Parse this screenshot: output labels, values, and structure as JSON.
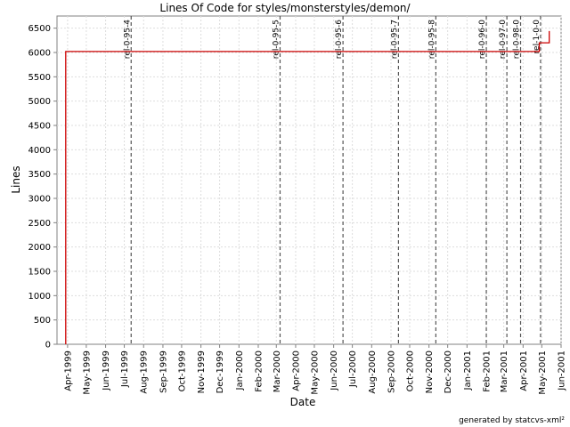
{
  "chart_data": {
    "type": "line",
    "title": "Lines Of Code for styles/monsterstyles/demon/",
    "xlabel": "Date",
    "ylabel": "Lines",
    "ylim": [
      0,
      6750
    ],
    "xlim": [
      "1999-03-15",
      "2001-06-01"
    ],
    "y_ticks": [
      0,
      500,
      1000,
      1500,
      2000,
      2500,
      3000,
      3500,
      4000,
      4500,
      5000,
      5500,
      6000,
      6500
    ],
    "x_tick_dates": [
      "1999-04-01",
      "1999-05-01",
      "1999-06-01",
      "1999-07-01",
      "1999-08-01",
      "1999-09-01",
      "1999-10-01",
      "1999-11-01",
      "1999-12-01",
      "2000-01-01",
      "2000-02-01",
      "2000-03-01",
      "2000-04-01",
      "2000-05-01",
      "2000-06-01",
      "2000-07-01",
      "2000-08-01",
      "2000-09-01",
      "2000-10-01",
      "2000-11-01",
      "2000-12-01",
      "2001-01-01",
      "2001-02-01",
      "2001-03-01",
      "2001-04-01",
      "2001-05-01",
      "2001-06-01"
    ],
    "x_tick_labels": [
      "Apr-1999",
      "May-1999",
      "Jun-1999",
      "Jul-1999",
      "Aug-1999",
      "Sep-1999",
      "Oct-1999",
      "Nov-1999",
      "Dec-1999",
      "Jan-2000",
      "Feb-2000",
      "Mar-2000",
      "Apr-2000",
      "May-2000",
      "Jun-2000",
      "Jul-2000",
      "Aug-2000",
      "Sep-2000",
      "Oct-2000",
      "Nov-2000",
      "Dec-2000",
      "Jan-2001",
      "Feb-2001",
      "Mar-2001",
      "Apr-2001",
      "May-2001",
      "Jun-2001"
    ],
    "series": [
      {
        "color": "#cc0000",
        "points": [
          {
            "x": "1999-03-29",
            "y": 0
          },
          {
            "x": "1999-03-29",
            "y": 6020
          },
          {
            "x": "2001-04-27",
            "y": 6020
          },
          {
            "x": "2001-04-27",
            "y": 6200
          },
          {
            "x": "2001-05-13",
            "y": 6200
          },
          {
            "x": "2001-05-13",
            "y": 6440
          }
        ]
      }
    ],
    "releases": [
      {
        "label": "rel-0-95-4",
        "date": "1999-07-12"
      },
      {
        "label": "rel-0-95-5",
        "date": "2000-03-07"
      },
      {
        "label": "rel-0-95-6",
        "date": "2000-06-16"
      },
      {
        "label": "rel-0-95-7",
        "date": "2000-09-13"
      },
      {
        "label": "rel-0-95-8",
        "date": "2000-11-12"
      },
      {
        "label": "rel-0-96-0",
        "date": "2001-02-01"
      },
      {
        "label": "rel-0-97-0",
        "date": "2001-03-06"
      },
      {
        "label": "rel-0-98-0",
        "date": "2001-03-28"
      },
      {
        "label": "rel-1-0-0",
        "date": "2001-04-29"
      }
    ],
    "grid": true,
    "legend": false
  },
  "footer": "generated by statcvs-xml²"
}
